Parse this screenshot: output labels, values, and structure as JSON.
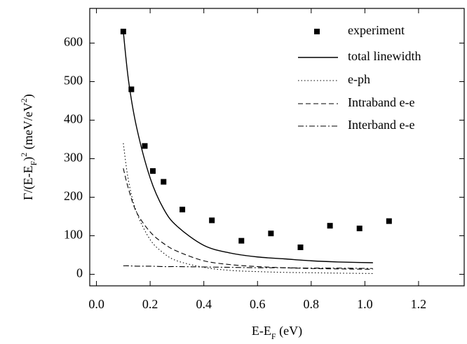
{
  "chart_data": {
    "type": "line",
    "x_label": [
      {
        "text": "E-E"
      },
      {
        "text": "F",
        "shift": "sub"
      },
      {
        "text": " (eV)"
      }
    ],
    "y_label": [
      {
        "text": "Γ/(E-E"
      },
      {
        "text": "F",
        "shift": "sub"
      },
      {
        "text": ")"
      },
      {
        "text": "2",
        "shift": "super"
      },
      {
        "text": " (meV/eV"
      },
      {
        "text": "2",
        "shift": "super"
      },
      {
        "text": ")"
      }
    ],
    "xlim": [
      -0.025,
      1.37
    ],
    "ylim": [
      -30,
      690
    ],
    "xticks": [
      {
        "value": 0,
        "label": "0.0"
      },
      {
        "value": 0.2,
        "label": "0.2"
      },
      {
        "value": 0.4,
        "label": "0.4"
      },
      {
        "value": 0.6,
        "label": "0.6"
      },
      {
        "value": 0.8,
        "label": "0.8"
      },
      {
        "value": 1,
        "label": "1.0"
      },
      {
        "value": 1.2,
        "label": "1.2"
      }
    ],
    "yticks": [
      0,
      100,
      200,
      300,
      400,
      500,
      600
    ],
    "legend": "upper right",
    "series": [
      {
        "name": "experiment",
        "style": "markers",
        "color": "#000000",
        "x": [
          0.1,
          0.13,
          0.18,
          0.21,
          0.25,
          0.32,
          0.43,
          0.54,
          0.65,
          0.76,
          0.87,
          0.98,
          1.09
        ],
        "values": [
          630,
          480,
          333,
          268,
          240,
          168,
          140,
          87,
          106,
          70,
          126,
          119,
          138
        ]
      },
      {
        "name": "total linewidth",
        "style": "solid",
        "color": "#000000",
        "x": [
          0.1,
          0.12,
          0.15,
          0.2,
          0.25,
          0.3,
          0.4,
          0.5,
          0.6,
          0.7,
          0.8,
          0.9,
          1.03
        ],
        "values": [
          630,
          500,
          380,
          250,
          170,
          125,
          75,
          55,
          45,
          40,
          35,
          32,
          30
        ]
      },
      {
        "name": "e-ph",
        "style": "dotted",
        "color": "#000000",
        "x": [
          0.1,
          0.12,
          0.15,
          0.2,
          0.25,
          0.3,
          0.4,
          0.5,
          0.6,
          0.7,
          0.8,
          0.9,
          1.03
        ],
        "values": [
          340,
          240,
          160,
          90,
          55,
          35,
          18,
          10,
          7,
          5,
          4,
          3,
          2
        ]
      },
      {
        "name": "Intraband e-e",
        "style": "dashed",
        "color": "#000000",
        "x": [
          0.1,
          0.12,
          0.15,
          0.2,
          0.25,
          0.3,
          0.4,
          0.5,
          0.6,
          0.7,
          0.8,
          0.9,
          1.03
        ],
        "values": [
          275,
          220,
          160,
          110,
          80,
          60,
          35,
          25,
          20,
          17,
          15,
          14,
          13
        ]
      },
      {
        "name": "Interband e-e",
        "style": "dashdot",
        "color": "#000000",
        "x": [
          0.1,
          0.12,
          0.15,
          0.2,
          0.25,
          0.3,
          0.4,
          0.5,
          0.6,
          0.7,
          0.8,
          0.9,
          1.03
        ],
        "values": [
          22,
          22,
          21,
          21,
          20,
          20,
          19,
          18,
          17,
          17,
          16,
          16,
          15
        ]
      }
    ]
  }
}
